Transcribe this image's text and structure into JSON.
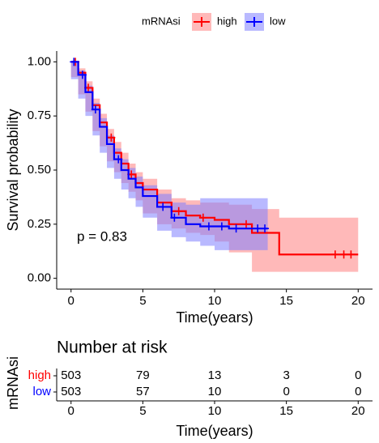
{
  "chart_data": [
    {
      "type": "step",
      "legend_title": "mRNAsi",
      "y_label": "Survival probability",
      "x_label": "Time(years)",
      "annotation": "p = 0.83",
      "xlim": [
        -1,
        21
      ],
      "ylim": [
        -0.05,
        1.05
      ],
      "xticks": [
        0,
        5,
        10,
        15,
        20
      ],
      "yticks": [
        {
          "value": 0,
          "label": "0.00"
        },
        {
          "value": 0.25,
          "label": "0.25"
        },
        {
          "value": 0.5,
          "label": "0.50"
        },
        {
          "value": 0.75,
          "label": "0.75"
        },
        {
          "value": 1,
          "label": "1.00"
        }
      ],
      "series": [
        {
          "name": "high",
          "color": "#ff0000",
          "band_color": "#ff8080",
          "x": [
            0,
            0.5,
            1,
            1.5,
            2,
            2.5,
            3,
            3.5,
            4,
            4.5,
            5,
            6,
            7,
            8,
            9,
            10,
            11,
            12.6,
            14.5,
            20
          ],
          "values": [
            1,
            0.95,
            0.88,
            0.8,
            0.72,
            0.65,
            0.58,
            0.53,
            0.48,
            0.44,
            0.41,
            0.35,
            0.31,
            0.29,
            0.28,
            0.27,
            0.25,
            0.21,
            0.11,
            0.11
          ],
          "lower": [
            1,
            0.93,
            0.85,
            0.77,
            0.68,
            0.61,
            0.54,
            0.49,
            0.44,
            0.4,
            0.36,
            0.3,
            0.25,
            0.23,
            0.21,
            0.2,
            0.17,
            0.12,
            0.03,
            0.03
          ],
          "upper": [
            1,
            0.97,
            0.91,
            0.83,
            0.76,
            0.69,
            0.63,
            0.58,
            0.53,
            0.49,
            0.46,
            0.41,
            0.37,
            0.36,
            0.35,
            0.35,
            0.34,
            0.32,
            0.28,
            0.28
          ],
          "censored": [
            0.3,
            1.2,
            2.8,
            4.2,
            7.5,
            9.2,
            12.2,
            18.4,
            19,
            19.5
          ]
        },
        {
          "name": "low",
          "color": "#0000ff",
          "band_color": "#8080ff",
          "x": [
            0,
            0.5,
            1,
            1.5,
            2,
            2.5,
            3,
            3.5,
            4,
            4.5,
            5,
            6,
            7,
            8,
            9,
            10,
            11,
            13.7
          ],
          "values": [
            1,
            0.94,
            0.86,
            0.78,
            0.7,
            0.62,
            0.55,
            0.5,
            0.46,
            0.42,
            0.38,
            0.33,
            0.28,
            0.25,
            0.24,
            0.24,
            0.23,
            0.23
          ],
          "lower": [
            1,
            0.92,
            0.83,
            0.75,
            0.66,
            0.58,
            0.51,
            0.46,
            0.41,
            0.37,
            0.33,
            0.28,
            0.22,
            0.19,
            0.17,
            0.15,
            0.13,
            0.13
          ],
          "upper": [
            1,
            0.96,
            0.89,
            0.81,
            0.74,
            0.66,
            0.6,
            0.55,
            0.51,
            0.47,
            0.43,
            0.39,
            0.35,
            0.34,
            0.37,
            0.37,
            0.37,
            0.37
          ],
          "censored": [
            0.2,
            0.8,
            1.7,
            3.3,
            6.4,
            7.2,
            9.6,
            10.5,
            11.5,
            13,
            13.5
          ]
        }
      ]
    },
    {
      "type": "risk_table",
      "title": "Number at risk",
      "y_label": "mRNAsi",
      "x_label": "Time(years)",
      "xlim": [
        -1,
        21
      ],
      "xticks": [
        0,
        5,
        10,
        15,
        20
      ],
      "rows": [
        {
          "name": "high",
          "color": "#ff0000",
          "values": [
            503,
            79,
            13,
            3,
            0
          ]
        },
        {
          "name": "low",
          "color": "#0000ff",
          "values": [
            503,
            57,
            10,
            0,
            0
          ]
        }
      ]
    }
  ]
}
